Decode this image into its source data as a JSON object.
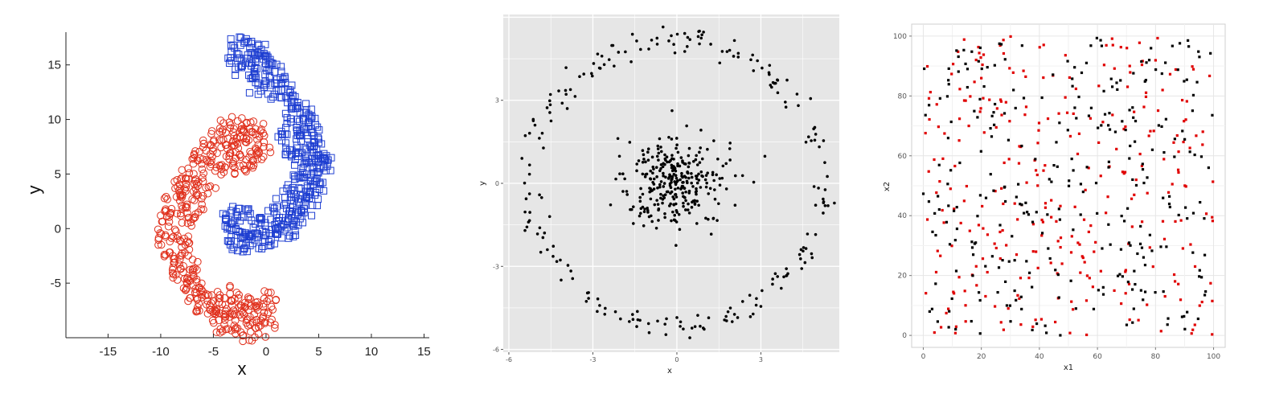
{
  "chart_data": [
    {
      "type": "scatter",
      "title": "",
      "xlabel": "x",
      "ylabel": "y",
      "xlim": [
        -19,
        15.5
      ],
      "ylim": [
        -10,
        18
      ],
      "xticks": [
        "-15",
        "-10",
        "-5",
        "0",
        "5",
        "10",
        "15"
      ],
      "yticks": [
        "-5",
        "0",
        "5",
        "10",
        "15"
      ],
      "grid": false,
      "legend": "none",
      "series": [
        {
          "marker": "square",
          "color": "#1f3fd1",
          "points": [
            [
              -2.8,
              17.1
            ],
            [
              -1.9,
              17.2
            ],
            [
              -1.2,
              16.6
            ],
            [
              -0.4,
              16.3
            ],
            [
              0.3,
              15.6
            ],
            [
              -3.0,
              15.6
            ],
            [
              -2.2,
              15.8
            ],
            [
              -1.5,
              15.3
            ],
            [
              -0.8,
              15.9
            ],
            [
              0.0,
              15.0
            ],
            [
              0.9,
              14.5
            ],
            [
              1.6,
              13.8
            ],
            [
              -2.6,
              14.6
            ],
            [
              -1.7,
              14.3
            ],
            [
              -0.6,
              14.0
            ],
            [
              0.4,
              13.6
            ],
            [
              1.2,
              13.1
            ],
            [
              2.1,
              12.6
            ],
            [
              -1.0,
              12.8
            ],
            [
              0.8,
              12.1
            ],
            [
              2.6,
              11.9
            ],
            [
              3.2,
              11.2
            ],
            [
              1.9,
              11.5
            ],
            [
              2.9,
              10.6
            ],
            [
              3.8,
              10.3
            ],
            [
              4.2,
              9.6
            ],
            [
              3.3,
              9.5
            ],
            [
              2.4,
              9.9
            ],
            [
              4.6,
              8.8
            ],
            [
              3.6,
              8.6
            ],
            [
              2.6,
              8.5
            ],
            [
              1.4,
              8.3
            ],
            [
              4.9,
              7.9
            ],
            [
              4.0,
              7.4
            ],
            [
              3.1,
              7.6
            ],
            [
              2.0,
              7.2
            ],
            [
              5.4,
              7.0
            ],
            [
              4.4,
              6.5
            ],
            [
              3.4,
              6.4
            ],
            [
              2.5,
              6.6
            ],
            [
              5.7,
              6.1
            ],
            [
              4.9,
              5.8
            ],
            [
              3.9,
              5.5
            ],
            [
              3.0,
              5.2
            ],
            [
              5.6,
              5.1
            ],
            [
              4.6,
              4.6
            ],
            [
              3.6,
              4.3
            ],
            [
              2.6,
              4.0
            ],
            [
              5.0,
              3.8
            ],
            [
              4.2,
              3.5
            ],
            [
              3.1,
              3.2
            ],
            [
              2.0,
              3.4
            ],
            [
              4.5,
              2.7
            ],
            [
              3.5,
              2.3
            ],
            [
              2.5,
              2.1
            ],
            [
              1.5,
              2.4
            ],
            [
              3.8,
              1.6
            ],
            [
              2.8,
              1.3
            ],
            [
              1.8,
              1.2
            ],
            [
              0.8,
              1.4
            ],
            [
              3.0,
              0.7
            ],
            [
              2.0,
              0.4
            ],
            [
              1.0,
              0.2
            ],
            [
              0.0,
              0.5
            ],
            [
              -0.9,
              0.9
            ],
            [
              -1.8,
              1.3
            ],
            [
              -2.7,
              1.6
            ],
            [
              -3.5,
              1.4
            ],
            [
              2.2,
              -0.3
            ],
            [
              1.2,
              -0.6
            ],
            [
              0.2,
              -0.8
            ],
            [
              -0.8,
              -0.5
            ],
            [
              -1.8,
              -0.2
            ],
            [
              -2.8,
              0.2
            ],
            [
              -3.6,
              0.4
            ],
            [
              0.9,
              -1.0
            ],
            [
              -0.3,
              -1.3
            ],
            [
              -1.4,
              -1.1
            ],
            [
              -2.5,
              -0.9
            ],
            [
              -3.4,
              -0.6
            ],
            [
              -1.9,
              -1.6
            ],
            [
              -3.0,
              -1.5
            ]
          ]
        },
        {
          "marker": "circle",
          "color": "#e0301c",
          "points": [
            [
              -2.9,
              9.7
            ],
            [
              -1.8,
              9.6
            ],
            [
              -0.8,
              9.2
            ],
            [
              -3.7,
              9.3
            ],
            [
              -2.5,
              8.9
            ],
            [
              -1.4,
              8.6
            ],
            [
              -0.4,
              8.2
            ],
            [
              -4.6,
              8.6
            ],
            [
              -3.5,
              8.2
            ],
            [
              -2.2,
              7.9
            ],
            [
              -1.1,
              7.4
            ],
            [
              -0.2,
              7.0
            ],
            [
              -5.5,
              7.9
            ],
            [
              -4.4,
              7.5
            ],
            [
              -3.2,
              7.2
            ],
            [
              -2.0,
              6.8
            ],
            [
              -1.0,
              6.3
            ],
            [
              -6.2,
              7.1
            ],
            [
              -5.2,
              6.7
            ],
            [
              -4.0,
              6.4
            ],
            [
              -2.9,
              6.0
            ],
            [
              -1.9,
              5.5
            ],
            [
              -7.0,
              6.1
            ],
            [
              -5.9,
              5.8
            ],
            [
              -4.8,
              5.4
            ],
            [
              -3.6,
              5.0
            ],
            [
              -7.5,
              5.0
            ],
            [
              -6.5,
              4.7
            ],
            [
              -5.4,
              4.3
            ],
            [
              -8.2,
              4.3
            ],
            [
              -7.2,
              3.8
            ],
            [
              -6.1,
              3.4
            ],
            [
              -8.7,
              3.3
            ],
            [
              -7.6,
              2.9
            ],
            [
              -6.5,
              2.4
            ],
            [
              -9.1,
              2.3
            ],
            [
              -8.0,
              1.9
            ],
            [
              -6.9,
              1.5
            ],
            [
              -9.6,
              1.2
            ],
            [
              -8.5,
              0.8
            ],
            [
              -7.4,
              0.4
            ],
            [
              -9.8,
              0.0
            ],
            [
              -8.8,
              -0.4
            ],
            [
              -7.7,
              -0.8
            ],
            [
              -9.6,
              -1.3
            ],
            [
              -8.6,
              -1.7
            ],
            [
              -7.5,
              -2.1
            ],
            [
              -9.3,
              -2.6
            ],
            [
              -8.2,
              -3.0
            ],
            [
              -7.1,
              -3.3
            ],
            [
              -8.7,
              -3.9
            ],
            [
              -7.6,
              -4.2
            ],
            [
              -6.5,
              -4.5
            ],
            [
              -8.0,
              -5.1
            ],
            [
              -6.9,
              -5.3
            ],
            [
              -5.8,
              -5.6
            ],
            [
              -7.2,
              -6.0
            ],
            [
              -6.1,
              -6.3
            ],
            [
              -5.0,
              -6.5
            ],
            [
              -6.4,
              -7.0
            ],
            [
              -5.3,
              -7.2
            ],
            [
              -4.2,
              -7.4
            ],
            [
              -5.5,
              -8.0
            ],
            [
              -4.4,
              -8.1
            ],
            [
              -3.3,
              -8.2
            ],
            [
              -2.2,
              -8.0
            ],
            [
              -4.6,
              -9.0
            ],
            [
              -3.5,
              -9.2
            ],
            [
              -2.4,
              -9.0
            ],
            [
              -1.3,
              -8.6
            ],
            [
              -0.4,
              -8.0
            ],
            [
              0.3,
              -7.2
            ],
            [
              -1.5,
              -7.4
            ],
            [
              -2.8,
              -7.1
            ],
            [
              -0.6,
              -9.4
            ],
            [
              0.2,
              -8.9
            ],
            [
              -1.9,
              -9.7
            ],
            [
              0.4,
              -6.3
            ],
            [
              -0.5,
              -6.8
            ],
            [
              -2.0,
              -6.6
            ],
            [
              -3.2,
              -6.3
            ],
            [
              -4.0,
              -5.9
            ]
          ]
        }
      ]
    },
    {
      "type": "scatter",
      "title": "",
      "xlabel": "x",
      "ylabel": "y",
      "xlim": [
        -6.2,
        5.8
      ],
      "ylim": [
        -6.1,
        6.1
      ],
      "xticks": [
        "-6",
        "-3",
        "0",
        "3"
      ],
      "yticks": [
        "-6",
        "-3",
        "0",
        "3"
      ],
      "grid": true,
      "legend": "none",
      "series": [
        {
          "name": "",
          "color": "#000000",
          "generator": {
            "outer_ring_radius": 5.2,
            "outer_points": 220,
            "inner_sd": 0.9,
            "inner_points": 300
          }
        }
      ]
    },
    {
      "type": "scatter",
      "title": "",
      "xlabel": "x1",
      "ylabel": "x2",
      "xlim": [
        -4,
        104
      ],
      "ylim": [
        -4,
        104
      ],
      "xticks": [
        "0",
        "20",
        "40",
        "60",
        "80",
        "100"
      ],
      "yticks": [
        "0",
        "20",
        "40",
        "60",
        "80",
        "100"
      ],
      "grid": true,
      "legend": "none",
      "series": [
        {
          "name": "",
          "color": "#e00000",
          "generator": {
            "uniform_points": 300
          }
        },
        {
          "name": "",
          "color": "#000000",
          "generator": {
            "uniform_points": 300
          }
        }
      ]
    }
  ]
}
